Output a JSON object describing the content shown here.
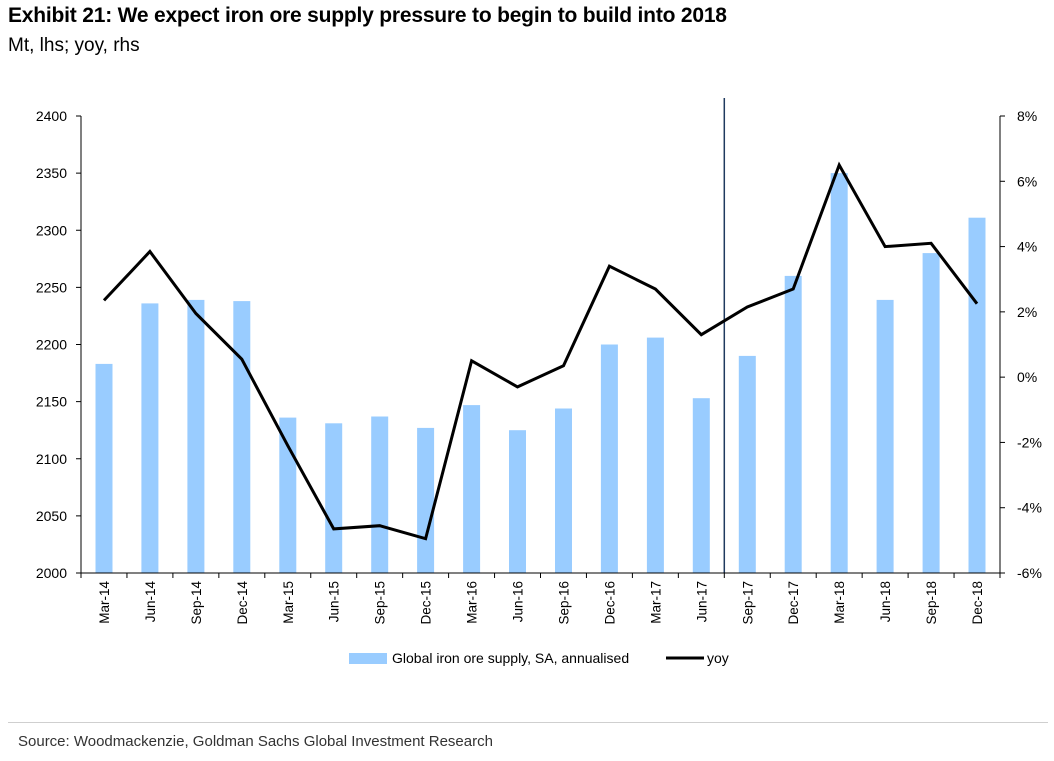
{
  "header": {
    "title": "Exhibit 21: We expect iron ore supply pressure to begin to build into 2018",
    "subtitle": "Mt, lhs; yoy, rhs"
  },
  "footer": {
    "source": "Source: Woodmackenzie, Goldman Sachs Global Investment Research"
  },
  "colors": {
    "bar": "#99CCFF",
    "line": "#000000",
    "divider": "#1F3A5F",
    "axis": "#000000"
  },
  "chart_data": {
    "type": "bar",
    "title": "Exhibit 21: We expect iron ore supply pressure to begin to build into 2018",
    "categories": [
      "Mar-14",
      "Jun-14",
      "Sep-14",
      "Dec-14",
      "Mar-15",
      "Jun-15",
      "Sep-15",
      "Dec-15",
      "Mar-16",
      "Jun-16",
      "Sep-16",
      "Dec-16",
      "Mar-17",
      "Jun-17",
      "Sep-17",
      "Dec-17",
      "Mar-18",
      "Jun-18",
      "Sep-18",
      "Dec-18"
    ],
    "series": [
      {
        "name": "Global iron ore supply, SA, annualised",
        "type": "bar",
        "axis": "left",
        "values": [
          2183,
          2236,
          2239,
          2238,
          2136,
          2131,
          2137,
          2127,
          2147,
          2125,
          2144,
          2200,
          2206,
          2153,
          2190,
          2260,
          2350,
          2239,
          2280,
          2311
        ]
      },
      {
        "name": "yoy",
        "type": "line",
        "axis": "right",
        "values": [
          2.35,
          3.85,
          1.95,
          0.55,
          -2.1,
          -4.65,
          -4.55,
          -4.95,
          0.5,
          -0.3,
          0.35,
          3.4,
          2.7,
          1.3,
          2.15,
          2.7,
          6.5,
          4.0,
          4.1,
          2.25
        ]
      }
    ],
    "ylim_left": [
      2000,
      2400
    ],
    "yticks_left": [
      "2000",
      "2050",
      "2100",
      "2150",
      "2200",
      "2250",
      "2300",
      "2350",
      "2400"
    ],
    "ylim_right": [
      -6,
      8
    ],
    "yticks_right": [
      "-6%",
      "-4%",
      "-2%",
      "0%",
      "2%",
      "4%",
      "6%",
      "8%"
    ],
    "divider_between": [
      "Jun-17",
      "Sep-17"
    ],
    "legend": {
      "position": "bottom",
      "entries": [
        "Global iron ore supply, SA, annualised",
        "yoy"
      ]
    },
    "grid": false
  }
}
